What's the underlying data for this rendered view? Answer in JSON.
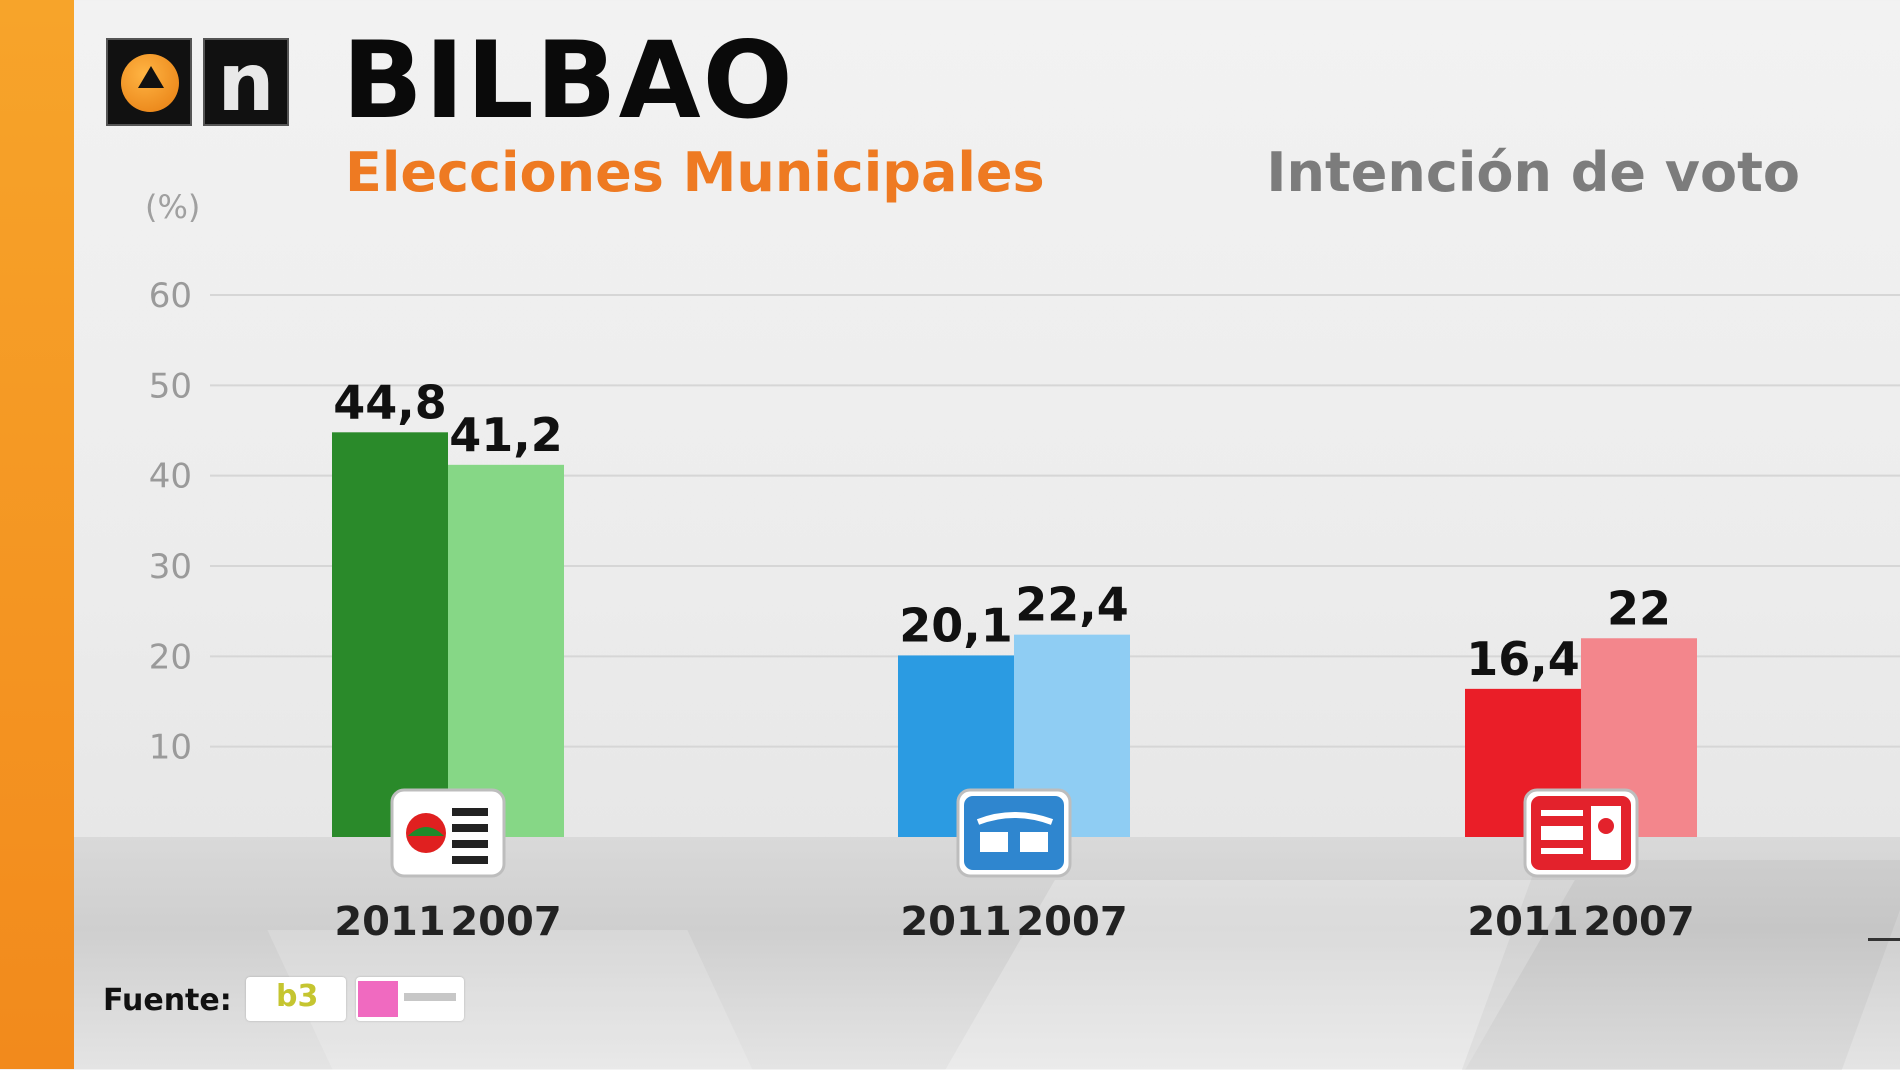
{
  "header": {
    "title": "BILBAO",
    "subtitle": "Elecciones Municipales",
    "right_title": "Intención de voto",
    "brand_letter": "n"
  },
  "footer": {
    "source_label": "Fuente:"
  },
  "colors": {
    "stripe": "#f39a23",
    "subtitle": "#ee7a22",
    "right_title": "#7c7c7c"
  },
  "parties": [
    {
      "logo_icon": "eaj-pnv-logo-icon",
      "color_2011": "#2a8a2a",
      "color_2007": "#86d786"
    },
    {
      "logo_icon": "pp-logo-icon",
      "color_2011": "#2b9be2",
      "color_2007": "#8fcdf3"
    },
    {
      "logo_icon": "pse-ee-psoe-logo-icon",
      "color_2011": "#ea1e28",
      "color_2007": "#f3868c"
    }
  ],
  "chart_data": {
    "type": "bar",
    "title": "BILBAO",
    "subtitle": "Elecciones Municipales",
    "ylabel": "(%)",
    "ylim": [
      0,
      60
    ],
    "yticks": [
      "10",
      "20",
      "30",
      "40",
      "50",
      "60"
    ],
    "grid": true,
    "categories": [
      "EAJ-PNV",
      "PP",
      "PSE-EE PSOE"
    ],
    "series": [
      {
        "name": "2011",
        "values": [
          44.8,
          20.1,
          16.4
        ],
        "labels": [
          "44,8",
          "20,1",
          "16,4"
        ]
      },
      {
        "name": "2007",
        "values": [
          41.2,
          22.4,
          22
        ],
        "labels": [
          "41,2",
          "22,4",
          "22"
        ]
      }
    ]
  }
}
